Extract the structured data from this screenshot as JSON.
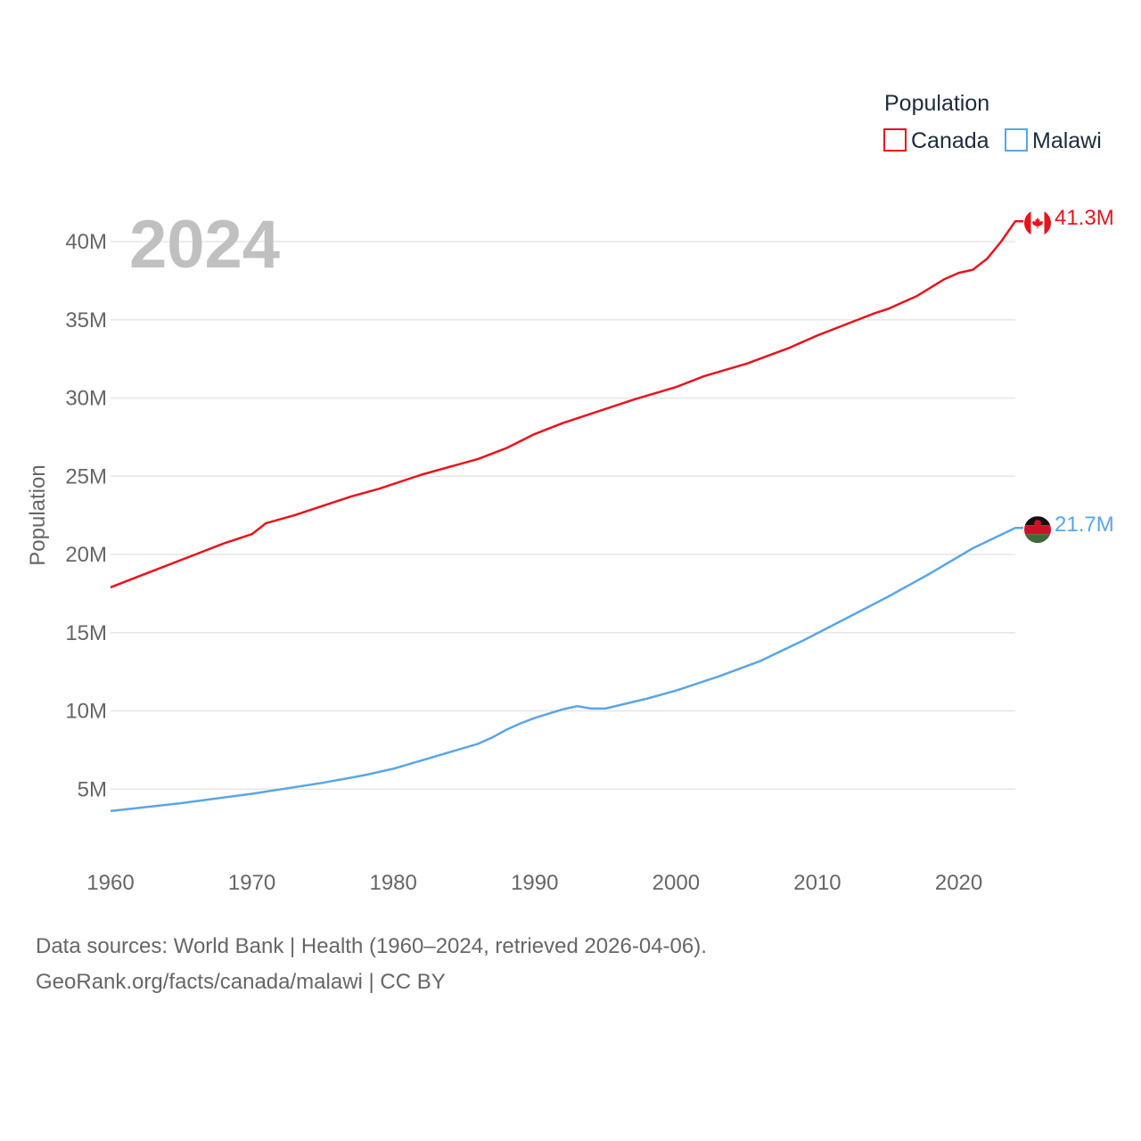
{
  "chart_data": {
    "type": "line",
    "legend_title": "Population",
    "year_label": "2024",
    "ylabel": "Population",
    "xlabel": "",
    "xlim": [
      1960,
      2024
    ],
    "ylim": [
      0,
      43000000
    ],
    "x_ticks": [
      1960,
      1970,
      1980,
      1990,
      2000,
      2010,
      2020
    ],
    "y_ticks": [
      {
        "value": 5000000,
        "label": "5M"
      },
      {
        "value": 10000000,
        "label": "10M"
      },
      {
        "value": 15000000,
        "label": "15M"
      },
      {
        "value": 20000000,
        "label": "20M"
      },
      {
        "value": 25000000,
        "label": "25M"
      },
      {
        "value": 30000000,
        "label": "30M"
      },
      {
        "value": 35000000,
        "label": "35M"
      },
      {
        "value": 40000000,
        "label": "40M"
      }
    ],
    "grid": true,
    "legend_position": "top-right",
    "series": [
      {
        "name": "Canada",
        "color": "#e8131b",
        "end_label": "41.3M",
        "flag": "canada-flag",
        "points": [
          [
            1960,
            17900000
          ],
          [
            1962,
            18600000
          ],
          [
            1964,
            19300000
          ],
          [
            1966,
            20000000
          ],
          [
            1968,
            20700000
          ],
          [
            1970,
            21300000
          ],
          [
            1971,
            22000000
          ],
          [
            1973,
            22500000
          ],
          [
            1975,
            23100000
          ],
          [
            1977,
            23700000
          ],
          [
            1979,
            24200000
          ],
          [
            1982,
            25100000
          ],
          [
            1986,
            26100000
          ],
          [
            1988,
            26800000
          ],
          [
            1990,
            27700000
          ],
          [
            1992,
            28400000
          ],
          [
            1995,
            29300000
          ],
          [
            1997,
            29900000
          ],
          [
            2000,
            30700000
          ],
          [
            2002,
            31400000
          ],
          [
            2005,
            32200000
          ],
          [
            2008,
            33200000
          ],
          [
            2010,
            34000000
          ],
          [
            2012,
            34700000
          ],
          [
            2014,
            35400000
          ],
          [
            2015,
            35700000
          ],
          [
            2017,
            36500000
          ],
          [
            2019,
            37600000
          ],
          [
            2020,
            38000000
          ],
          [
            2021,
            38200000
          ],
          [
            2022,
            38900000
          ],
          [
            2023,
            40000000
          ],
          [
            2024,
            41300000
          ]
        ]
      },
      {
        "name": "Malawi",
        "color": "#5ba5e5",
        "end_label": "21.7M",
        "flag": "malawi-flag",
        "points": [
          [
            1960,
            3600000
          ],
          [
            1965,
            4100000
          ],
          [
            1970,
            4700000
          ],
          [
            1975,
            5400000
          ],
          [
            1978,
            5900000
          ],
          [
            1980,
            6300000
          ],
          [
            1983,
            7100000
          ],
          [
            1986,
            7900000
          ],
          [
            1987,
            8300000
          ],
          [
            1988,
            8800000
          ],
          [
            1989,
            9200000
          ],
          [
            1990,
            9550000
          ],
          [
            1992,
            10100000
          ],
          [
            1993,
            10300000
          ],
          [
            1994,
            10150000
          ],
          [
            1995,
            10150000
          ],
          [
            1998,
            10800000
          ],
          [
            2000,
            11300000
          ],
          [
            2003,
            12200000
          ],
          [
            2006,
            13200000
          ],
          [
            2009,
            14500000
          ],
          [
            2012,
            15900000
          ],
          [
            2015,
            17300000
          ],
          [
            2018,
            18800000
          ],
          [
            2021,
            20400000
          ],
          [
            2024,
            21700000
          ]
        ]
      }
    ]
  },
  "footer": {
    "line1": "Data sources: World Bank | Health (1960–2024, retrieved 2026-04-06).",
    "line2": "GeoRank.org/facts/canada/malawi | CC BY"
  }
}
